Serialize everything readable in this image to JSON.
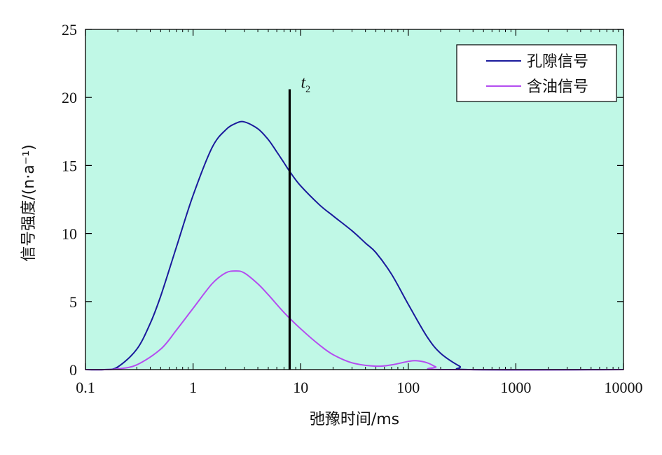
{
  "chart_data": {
    "type": "line",
    "x_scale": "log",
    "xlabel": "弛豫时间/ms",
    "ylabel": "信号强度/(n·a⁻¹)",
    "xlim": [
      0.1,
      10000
    ],
    "ylim": [
      0,
      25
    ],
    "x_ticks": [
      0.1,
      1,
      10,
      100,
      1000,
      10000
    ],
    "x_tick_labels": [
      "0.1",
      "1",
      "10",
      "100",
      "1000",
      "10000"
    ],
    "y_ticks": [
      0,
      5,
      10,
      15,
      20,
      25
    ],
    "y_tick_labels": [
      "0",
      "5",
      "10",
      "15",
      "20",
      "25"
    ],
    "plot_background": "#c0f8e6",
    "legend": {
      "position": "top-right"
    },
    "marker": {
      "label": "t",
      "subscript": "2",
      "x": 7.9,
      "y_top": 20.6,
      "color": "#000000"
    },
    "series": [
      {
        "name": "孔隙信号",
        "color": "#1a1a9c",
        "points": [
          [
            0.1,
            0.0
          ],
          [
            0.15,
            0.0
          ],
          [
            0.2,
            0.2
          ],
          [
            0.3,
            1.5
          ],
          [
            0.4,
            3.4
          ],
          [
            0.5,
            5.4
          ],
          [
            0.7,
            9.0
          ],
          [
            1.0,
            12.8
          ],
          [
            1.5,
            16.3
          ],
          [
            2.0,
            17.6
          ],
          [
            2.5,
            18.1
          ],
          [
            3.0,
            18.2
          ],
          [
            4.0,
            17.7
          ],
          [
            5.0,
            16.9
          ],
          [
            6.0,
            16.0
          ],
          [
            7.0,
            15.2
          ],
          [
            8.0,
            14.5
          ],
          [
            10.0,
            13.5
          ],
          [
            15.0,
            12.1
          ],
          [
            20.0,
            11.3
          ],
          [
            30.0,
            10.2
          ],
          [
            40.0,
            9.3
          ],
          [
            50.0,
            8.6
          ],
          [
            70.0,
            7.0
          ],
          [
            100.0,
            4.8
          ],
          [
            150.0,
            2.4
          ],
          [
            200.0,
            1.2
          ],
          [
            300.0,
            0.25
          ],
          [
            380.0,
            0.0
          ],
          [
            10000.0,
            0.0
          ]
        ]
      },
      {
        "name": "含油信号",
        "color": "#b44cf0",
        "points": [
          [
            0.1,
            0.0
          ],
          [
            0.15,
            0.0
          ],
          [
            0.2,
            0.05
          ],
          [
            0.3,
            0.35
          ],
          [
            0.5,
            1.5
          ],
          [
            0.7,
            2.9
          ],
          [
            1.0,
            4.5
          ],
          [
            1.5,
            6.3
          ],
          [
            2.0,
            7.1
          ],
          [
            2.5,
            7.25
          ],
          [
            3.0,
            7.1
          ],
          [
            4.0,
            6.3
          ],
          [
            5.0,
            5.5
          ],
          [
            7.0,
            4.2
          ],
          [
            10.0,
            3.0
          ],
          [
            15.0,
            1.8
          ],
          [
            20.0,
            1.1
          ],
          [
            30.0,
            0.5
          ],
          [
            50.0,
            0.25
          ],
          [
            70.0,
            0.35
          ],
          [
            100.0,
            0.6
          ],
          [
            120.0,
            0.65
          ],
          [
            150.0,
            0.5
          ],
          [
            180.0,
            0.2
          ],
          [
            210.0,
            0.0
          ],
          [
            10000.0,
            0.0
          ]
        ]
      }
    ]
  }
}
